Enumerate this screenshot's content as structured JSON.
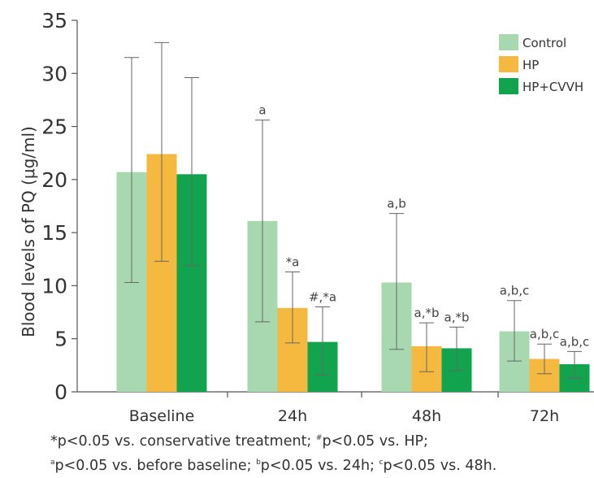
{
  "chart_data": {
    "type": "bar",
    "ylabel": "Blood levels of PQ (μg/ml)",
    "xlabel": "",
    "ylim": [
      0,
      35
    ],
    "yticks": [
      0,
      5,
      10,
      15,
      20,
      25,
      30,
      35
    ],
    "categories": [
      "Baseline",
      "24h",
      "48h",
      "72h"
    ],
    "legend_position": "top-right",
    "grid": false,
    "series": [
      {
        "name": "Control",
        "color": "#a8d8b0",
        "values": [
          20.7,
          16.1,
          10.3,
          5.7
        ],
        "error_low": [
          10.3,
          6.6,
          4.0,
          2.9
        ],
        "error_high": [
          31.5,
          25.6,
          16.8,
          8.6
        ],
        "annotations": [
          "",
          "a",
          "a,b",
          "a,b,c"
        ]
      },
      {
        "name": "HP",
        "color": "#f6b93f",
        "values": [
          22.4,
          7.9,
          4.3,
          3.1
        ],
        "error_low": [
          12.3,
          4.6,
          1.9,
          1.7
        ],
        "error_high": [
          32.9,
          11.3,
          6.5,
          4.5
        ],
        "annotations": [
          "",
          "*a",
          "a,*b",
          "a,b,c"
        ]
      },
      {
        "name": "HP+CVVH",
        "color": "#12a34e",
        "values": [
          20.5,
          4.7,
          4.1,
          2.6
        ],
        "error_low": [
          11.9,
          1.6,
          2.0,
          1.3
        ],
        "error_high": [
          29.6,
          8.0,
          6.1,
          3.8
        ],
        "annotations": [
          "",
          "#,*a",
          "a,*b",
          "a,b,c"
        ]
      }
    ]
  },
  "footnotes": {
    "line1": [
      {
        "sup": "",
        "text": "*p<0.05 vs. conservative treatment; "
      },
      {
        "sup": "#",
        "text": "p<0.05 vs. HP;"
      }
    ],
    "line2": [
      {
        "sup": "a",
        "text": "p<0.05 vs. before baseline; "
      },
      {
        "sup": "b",
        "text": "p<0.05 vs. 24h; "
      },
      {
        "sup": "c",
        "text": "p<0.05 vs. 48h."
      }
    ]
  }
}
